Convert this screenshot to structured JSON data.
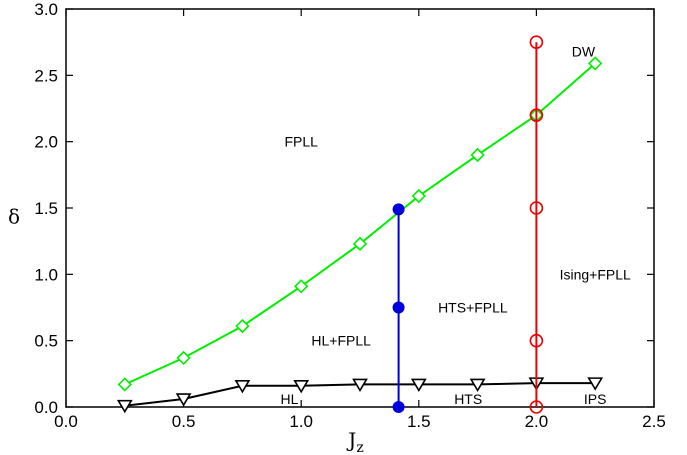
{
  "chart_data": {
    "type": "line",
    "xlabel": "J",
    "xlabel_sub": "z",
    "ylabel": "δ",
    "xlim": [
      0.0,
      2.5
    ],
    "ylim": [
      0.0,
      3.0
    ],
    "xticks": [
      0.0,
      0.5,
      1.0,
      1.5,
      2.0,
      2.5
    ],
    "yticks": [
      0.0,
      0.5,
      1.0,
      1.5,
      2.0,
      2.5,
      3.0
    ],
    "xtick_labels": [
      "0.0",
      "0.5",
      "1.0",
      "1.5",
      "2.0",
      "2.5"
    ],
    "ytick_labels": [
      "0.0",
      "0.5",
      "1.0",
      "1.5",
      "2.0",
      "2.5",
      "3.0"
    ],
    "grid": false,
    "series": [
      {
        "color": "#00ee00",
        "marker": "diamond-open",
        "x": [
          0.25,
          0.5,
          0.75,
          1.0,
          1.25,
          1.5,
          1.75,
          2.0,
          2.25
        ],
        "y": [
          0.17,
          0.37,
          0.61,
          0.91,
          1.23,
          1.59,
          1.9,
          2.2,
          2.59
        ]
      },
      {
        "color": "#000000",
        "marker": "triangle-down-open",
        "x": [
          0.25,
          0.5,
          0.75,
          1.0,
          1.25,
          1.5,
          1.75,
          2.0,
          2.25
        ],
        "y": [
          0.01,
          0.06,
          0.16,
          0.16,
          0.17,
          0.17,
          0.17,
          0.18,
          0.18
        ]
      },
      {
        "color": "#0000dd",
        "marker": "circle-filled",
        "x": [
          1.414,
          1.414,
          1.414
        ],
        "y": [
          0.0,
          0.75,
          1.49
        ]
      },
      {
        "color": "#ee0000",
        "marker": "circle-open",
        "x": [
          2.0,
          2.0,
          2.0,
          2.0,
          2.0
        ],
        "y": [
          0.0,
          0.5,
          1.5,
          2.2,
          2.75
        ]
      }
    ],
    "annotations": [
      {
        "text": "FPLL",
        "x": 1.0,
        "y": 2.0
      },
      {
        "text": "DW",
        "x": 2.2,
        "y": 2.68
      },
      {
        "text": "HTS+FPLL",
        "x": 1.73,
        "y": 0.75
      },
      {
        "text": "Ising+FPLL",
        "x": 2.25,
        "y": 1.0
      },
      {
        "text": "HL+FPLL",
        "x": 1.17,
        "y": 0.5
      },
      {
        "text": "HL",
        "x": 0.95,
        "y": 0.06
      },
      {
        "text": "HTS",
        "x": 1.71,
        "y": 0.06
      },
      {
        "text": "IPS",
        "x": 2.25,
        "y": 0.06
      }
    ]
  }
}
